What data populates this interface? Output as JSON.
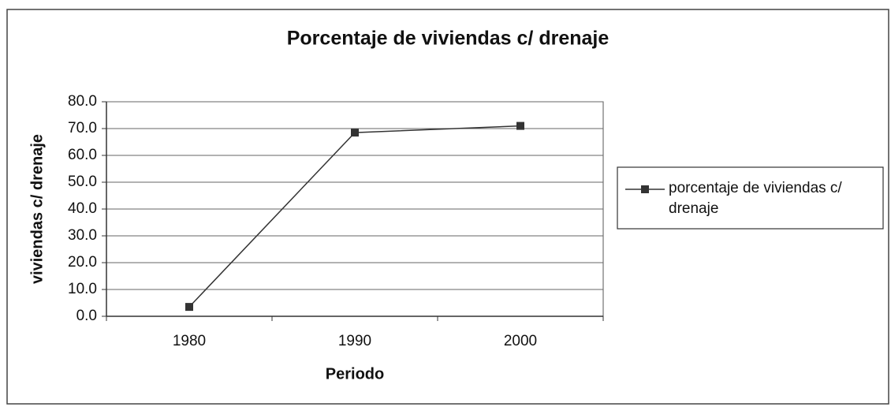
{
  "chart_data": {
    "type": "line",
    "title": "Porcentaje de viviendas c/ drenaje",
    "x_label": "Periodo",
    "y_label": "viviendas c/ drenaje",
    "categories": [
      "1980",
      "1990",
      "2000"
    ],
    "series": [
      {
        "name": "porcentaje de viviendas c/ drenaje",
        "color": "#333333",
        "values": [
          3.5,
          68.5,
          71.0
        ]
      }
    ],
    "ylim": [
      0,
      80
    ],
    "yticks": [
      {
        "value": 0,
        "label": "0.0"
      },
      {
        "value": 10,
        "label": "10.0"
      },
      {
        "value": 20,
        "label": "20.0"
      },
      {
        "value": 30,
        "label": "30.0"
      },
      {
        "value": 40,
        "label": "40.0"
      },
      {
        "value": 50,
        "label": "50.0"
      },
      {
        "value": 60,
        "label": "60.0"
      },
      {
        "value": 70,
        "label": "70.0"
      },
      {
        "value": 80,
        "label": "80.0"
      }
    ],
    "grid": true,
    "legend": "right"
  }
}
